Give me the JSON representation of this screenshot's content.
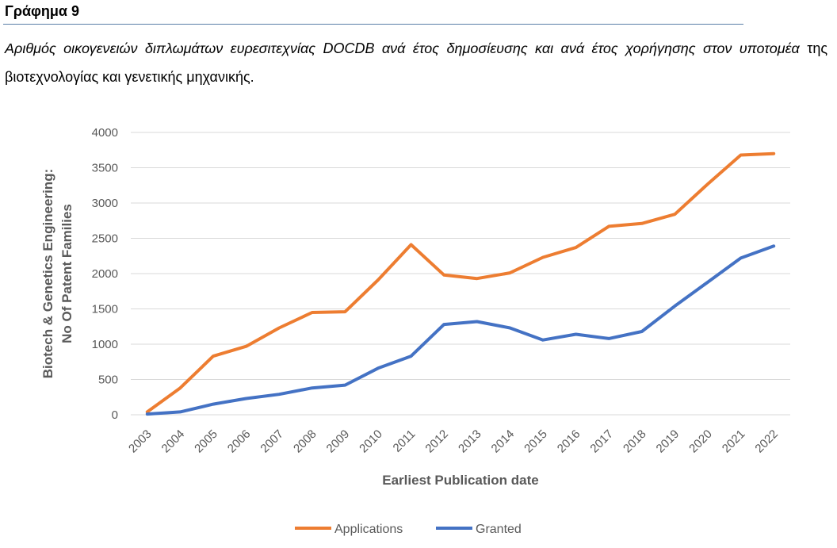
{
  "heading": "Γράφημα 9",
  "caption": {
    "italic_part": "Αριθμός οικογενειών διπλωμάτων ευρεσιτεχνίας DOCDB ανά έτος δημοσίευσης και ανά έτος χορήγησης στον υποτομέα",
    "normal_part": " της βιοτεχνολογίας και γενετικής μηχανικής."
  },
  "chart_data": {
    "type": "line",
    "title": "",
    "xlabel": "Earliest Publication date",
    "ylabel_lines": [
      "Biotech & Genetics Engineering:",
      "No Of Patent Families"
    ],
    "ylim": [
      0,
      4000
    ],
    "yticks": [
      0,
      500,
      1000,
      1500,
      2000,
      2500,
      3000,
      3500,
      4000
    ],
    "grid": true,
    "legend_position": "bottom",
    "categories": [
      "2003",
      "2004",
      "2005",
      "2006",
      "2007",
      "2008",
      "2009",
      "2010",
      "2011",
      "2012",
      "2013",
      "2014",
      "2015",
      "2016",
      "2017",
      "2018",
      "2019",
      "2020",
      "2021",
      "2022"
    ],
    "series": [
      {
        "name": "Applications",
        "color": "#ed7d31",
        "values": [
          40,
          380,
          830,
          970,
          1230,
          1450,
          1460,
          1910,
          2410,
          1980,
          1930,
          2010,
          2230,
          2370,
          2670,
          2710,
          2840,
          3270,
          3680,
          3700
        ]
      },
      {
        "name": "Granted",
        "color": "#4472c4",
        "values": [
          10,
          40,
          150,
          230,
          290,
          380,
          420,
          660,
          830,
          1280,
          1320,
          1230,
          1060,
          1140,
          1080,
          1180,
          1540,
          1880,
          2220,
          2390
        ]
      }
    ]
  }
}
